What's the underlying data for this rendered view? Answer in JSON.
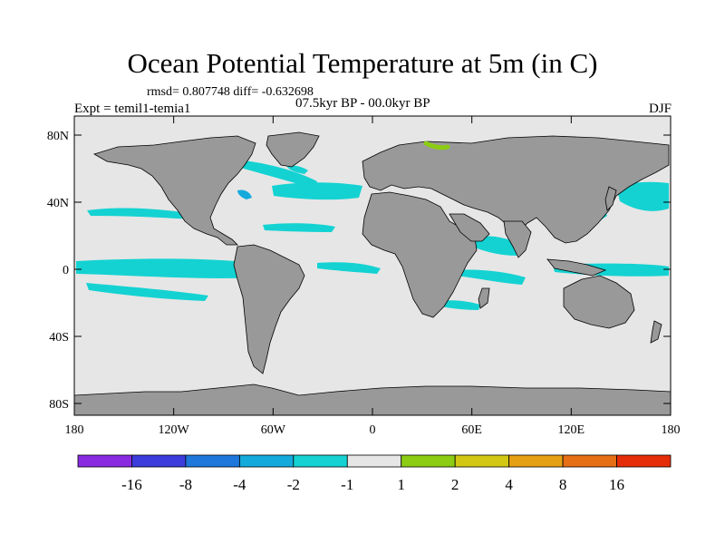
{
  "title": "Ocean Potential Temperature at 5m (in C)",
  "stats": "rmsd= 0.807748 diff= -0.632698",
  "period": "07.5kyr BP - 00.0kyr BP",
  "experiment": "Expt = temil1-temia1",
  "season": "DJF",
  "axes": {
    "y_ticks": [
      "80N",
      "40N",
      "0",
      "40S",
      "80S"
    ],
    "x_ticks": [
      "180",
      "120W",
      "60W",
      "0",
      "60E",
      "120E",
      "180"
    ]
  },
  "colorbar": {
    "colors": [
      "#8a2be2",
      "#3c3cdc",
      "#1e78dc",
      "#14aadc",
      "#14d2d2",
      "#e6e6e6",
      "#8ccd14",
      "#d2c814",
      "#e6a014",
      "#e66e14",
      "#e62d0a"
    ],
    "labels": [
      "-16",
      "-8",
      "-4",
      "-2",
      "-1",
      "1",
      "2",
      "4",
      "8",
      "16"
    ]
  },
  "colors": {
    "ocean": "#e6e6e6",
    "land": "#999999",
    "cool": "#14d2d2",
    "cooler": "#14aadc",
    "warm": "#8ccd14"
  }
}
